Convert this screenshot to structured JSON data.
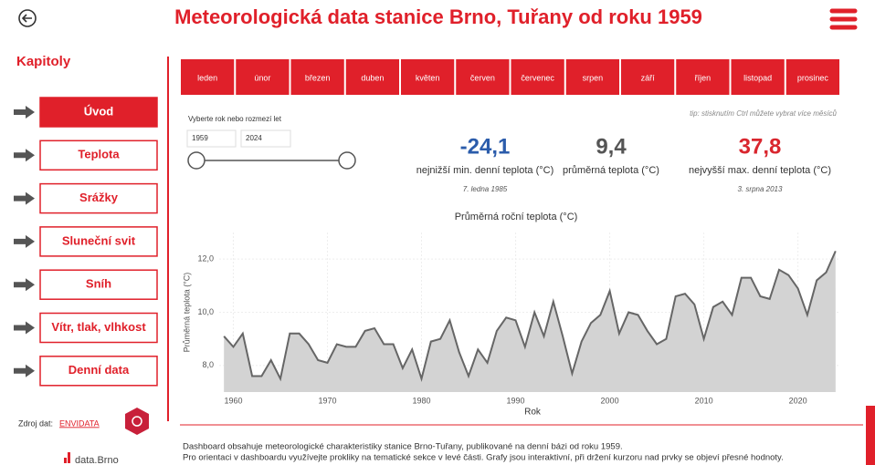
{
  "header": {
    "title": "Meteorologická data stanice Brno, Tuřany od roku 1959"
  },
  "sidebar": {
    "heading": "Kapitoly",
    "items": [
      "Úvod",
      "Teplota",
      "Srážky",
      "Sluneční svit",
      "Sníh",
      "Vítr, tlak, vlhkost",
      "Denní data"
    ],
    "source_label": "Zdroj dat:",
    "source_link": "ENVIDATA",
    "brand": "data.Brno"
  },
  "months": [
    "leden",
    "únor",
    "březen",
    "duben",
    "květen",
    "červen",
    "červenec",
    "srpen",
    "září",
    "říjen",
    "listopad",
    "prosinec"
  ],
  "filter": {
    "label": "Vyberte rok nebo rozmezí let",
    "from": "1959",
    "to": "2024"
  },
  "tip": "tip: stisknutím Ctrl můžete vybrat více měsíců",
  "stats": [
    {
      "value": "-24,1",
      "label": "nejnižší min. denní teplota (°C)",
      "date": "7. ledna 1985",
      "color": "#2b5cab"
    },
    {
      "value": "9,4",
      "label": "průměrná teplota (°C)",
      "color": "#555555"
    },
    {
      "value": "37,8",
      "label": "nejvyšší max. denní teplota (°C)",
      "date": "3. srpna 2013",
      "color": "#d9262e"
    }
  ],
  "chart_data": {
    "type": "area",
    "title": "Průměrná roční teplota (°C)",
    "x_label": "Rok",
    "y_label": "Průměrná teplota (°C)",
    "x": [
      1959,
      1960,
      1961,
      1962,
      1963,
      1964,
      1965,
      1966,
      1967,
      1968,
      1969,
      1970,
      1971,
      1972,
      1973,
      1974,
      1975,
      1976,
      1977,
      1978,
      1979,
      1980,
      1981,
      1982,
      1983,
      1984,
      1985,
      1986,
      1987,
      1988,
      1989,
      1990,
      1991,
      1992,
      1993,
      1994,
      1995,
      1996,
      1997,
      1998,
      1999,
      2000,
      2001,
      2002,
      2003,
      2004,
      2005,
      2006,
      2007,
      2008,
      2009,
      2010,
      2011,
      2012,
      2013,
      2014,
      2015,
      2016,
      2017,
      2018,
      2019,
      2020,
      2021,
      2022,
      2023,
      2024
    ],
    "values": [
      9.1,
      8.7,
      9.2,
      7.6,
      7.6,
      8.2,
      7.5,
      9.2,
      9.2,
      8.8,
      8.2,
      8.1,
      8.8,
      8.7,
      8.7,
      9.3,
      9.4,
      8.8,
      8.8,
      7.9,
      8.6,
      7.5,
      8.9,
      9.0,
      9.7,
      8.5,
      7.6,
      8.6,
      8.1,
      9.3,
      9.8,
      9.7,
      8.7,
      10.0,
      9.1,
      10.4,
      9.1,
      7.7,
      8.9,
      9.6,
      9.9,
      10.8,
      9.2,
      10.0,
      9.9,
      9.3,
      8.8,
      9.0,
      10.6,
      10.7,
      10.3,
      9.0,
      10.2,
      10.4,
      9.9,
      11.3,
      11.3,
      10.6,
      10.5,
      11.6,
      11.4,
      10.9,
      9.9,
      11.2,
      11.5,
      12.3
    ],
    "color": "#666666",
    "fill_color": "#d3d3d3",
    "xlim": [
      1958.5,
      2024.5
    ],
    "xticks": [
      1960,
      1970,
      1980,
      1990,
      2000,
      2010,
      2020
    ],
    "ylim": [
      7,
      13
    ],
    "yticks": [
      {
        "value": 8,
        "label": "8,0"
      },
      {
        "value": 10,
        "label": "10,0"
      },
      {
        "value": 12,
        "label": "12,0"
      }
    ],
    "grid": true
  },
  "footer": [
    "Dashboard obsahuje meteorologické charakteristiky stanice Brno-Tuřany, publikované na denní bázi od roku 1959.",
    "Pro orientaci v dashboardu využívejte prokliky na tematické sekce v levé části. Grafy jsou interaktivní, při držení kurzoru nad prvky se objeví přesné hodnoty."
  ]
}
